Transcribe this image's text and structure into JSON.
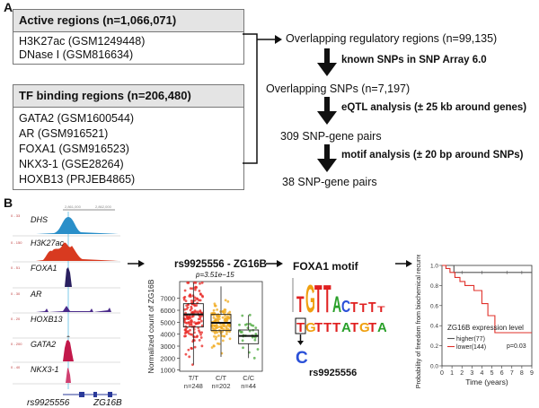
{
  "panel_a": {
    "label": "A",
    "active_box": {
      "title": "Active regions (n=1,066,071)",
      "items": [
        "H3K27ac (GSM1249448)",
        "DNase I (GSM816634)"
      ]
    },
    "tf_box": {
      "title": "TF binding regions (n=206,480)",
      "items": [
        "GATA2 (GSM1600544)",
        "AR (GSM916521)",
        "FOXA1 (GSM916523)",
        "NKX3-1 (GSE28264)",
        "HOXB13 (PRJEB4865)"
      ]
    },
    "flow": {
      "overlap_regions": "Overlapping regulatory regions (n=99,135)",
      "step1": "known SNPs in SNP Array 6.0",
      "overlap_snps": "Overlapping SNPs (n=7,197)",
      "step2": "eQTL analysis (± 25 kb around genes)",
      "pairs1": "309 SNP-gene pairs",
      "step3": "motif analysis (± 20 bp around SNPs)",
      "pairs2": "38 SNP-gene pairs"
    }
  },
  "panel_b": {
    "label": "B",
    "tracks": [
      "DHS",
      "H3K27ac",
      "FOXA1",
      "AR",
      "HOXB13",
      "GATA2",
      "NKX3-1"
    ],
    "track_colors": [
      "#2a8fc9",
      "#d83a20",
      "#2a2060",
      "#4a2a8a",
      "#6a6a6a",
      "#c2184a",
      "#d04070"
    ],
    "snp_label": "rs9925556",
    "gene_label": "ZG16B",
    "boxplot_title": "rs9925556 - ZG16B",
    "motif_title": "FOXA1 motif",
    "motif_sequence": "TGTTTATGTA",
    "motif_alt_base": "C",
    "motif_snp_label": "rs9925556"
  },
  "chart_data": [
    {
      "type": "box",
      "title": "rs9925556 - ZG16B",
      "subtitle": "p=3.51e−15",
      "ylabel": "Normalized count of ZG16B",
      "yticks": [
        1000,
        2000,
        3000,
        4000,
        5000,
        6000,
        7000
      ],
      "categories": [
        "T/T",
        "C/T",
        "C/C"
      ],
      "sample_sizes": [
        "n=248",
        "n=202",
        "n=44"
      ],
      "colors": [
        "#e8231f",
        "#f0a818",
        "#4aa83a"
      ],
      "boxes": [
        {
          "min": 1450,
          "q1": 4600,
          "median": 5650,
          "q3": 6550,
          "max": 8300
        },
        {
          "min": 2100,
          "q1": 4300,
          "median": 4950,
          "q3": 5650,
          "max": 8000
        },
        {
          "min": 2000,
          "q1": 3200,
          "median": 3850,
          "q3": 4350,
          "max": 5600
        }
      ],
      "ylim": [
        900,
        8400
      ]
    },
    {
      "type": "line",
      "ylabel": "Probability of freedom from biochemical recurrence",
      "xlabel": "Time (years)",
      "xticks": [
        0,
        1,
        2,
        3,
        4,
        5,
        6,
        7,
        8,
        9
      ],
      "yticks": [
        "0.0",
        "0.2",
        "0.4",
        "0.6",
        "0.8",
        "1.0"
      ],
      "legend_title": "ZG16B expression level",
      "pvalue": "p=0.03",
      "series": [
        {
          "name": "higher(77)",
          "color": "#555555",
          "x": [
            0,
            1.2,
            1.2,
            9
          ],
          "y": [
            1.0,
            1.0,
            0.93,
            0.93
          ]
        },
        {
          "name": "lower(144)",
          "color": "#e0302a",
          "x": [
            0,
            0.4,
            0.4,
            0.8,
            0.8,
            1.3,
            1.3,
            1.8,
            1.8,
            2.3,
            2.3,
            3.2,
            3.2,
            4.0,
            4.0,
            4.6,
            4.6,
            5.3,
            5.3,
            9
          ],
          "y": [
            1.0,
            1.0,
            0.97,
            0.97,
            0.93,
            0.93,
            0.88,
            0.88,
            0.84,
            0.84,
            0.8,
            0.8,
            0.75,
            0.75,
            0.62,
            0.62,
            0.5,
            0.5,
            0.33,
            0.33
          ]
        }
      ],
      "xlim": [
        0,
        9
      ],
      "ylim": [
        0,
        1
      ]
    }
  ]
}
